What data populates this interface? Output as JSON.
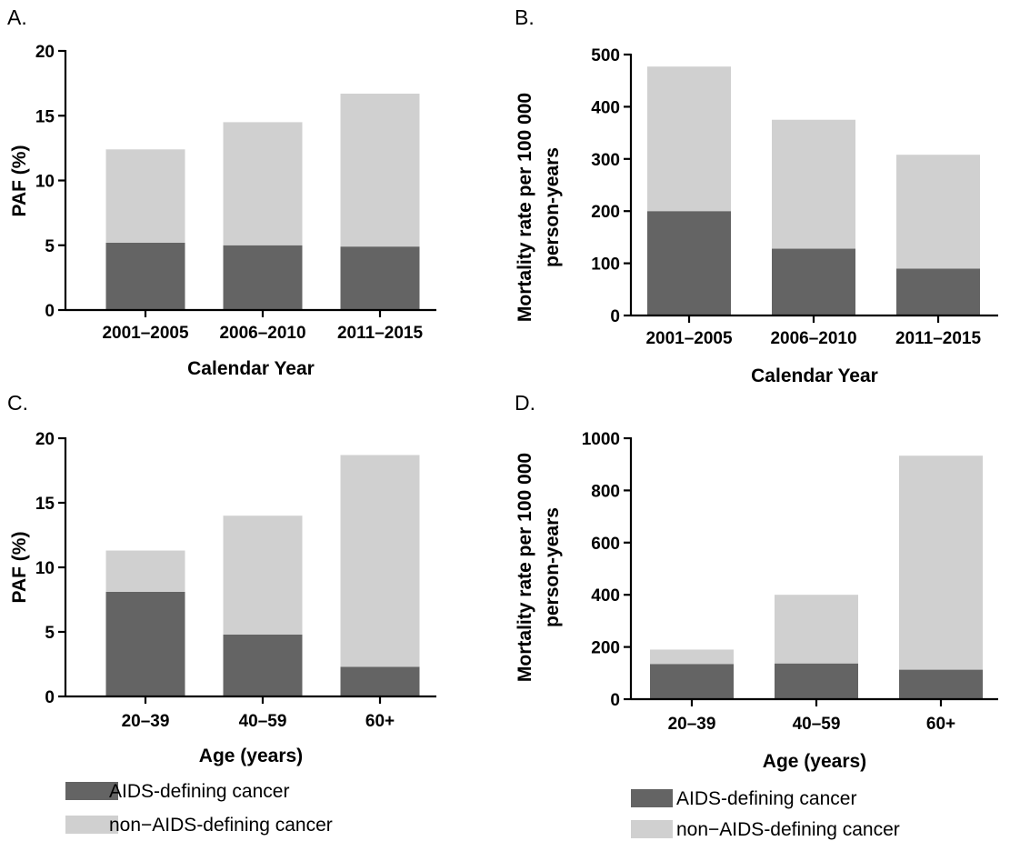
{
  "colors": {
    "aids": "#646464",
    "non_aids": "#d0d0d0"
  },
  "chart_data": [
    {
      "panel": "A.",
      "type": "bar",
      "stacked": true,
      "categories": [
        "2001–2005",
        "2006–2010",
        "2011–2015"
      ],
      "series": [
        {
          "key": "aids",
          "values": [
            5.2,
            5.0,
            4.9
          ]
        },
        {
          "key": "non_aids",
          "values": [
            7.2,
            9.5,
            11.8
          ]
        }
      ],
      "xlabel": "Calendar Year",
      "ylabel": [
        "PAF (%)"
      ],
      "ylim": [
        0,
        20
      ],
      "yticks": [
        0,
        5,
        10,
        15,
        20
      ]
    },
    {
      "panel": "B.",
      "type": "bar",
      "stacked": true,
      "categories": [
        "2001–2005",
        "2006–2010",
        "2011–2015"
      ],
      "series": [
        {
          "key": "aids",
          "values": [
            200,
            128,
            90
          ]
        },
        {
          "key": "non_aids",
          "values": [
            277,
            247,
            218
          ]
        }
      ],
      "xlabel": "Calendar Year",
      "ylabel": [
        "Mortality rate per 100 000",
        "person-years"
      ],
      "ylim": [
        0,
        500
      ],
      "yticks": [
        0,
        100,
        200,
        300,
        400,
        500
      ]
    },
    {
      "panel": "C.",
      "type": "bar",
      "stacked": true,
      "categories": [
        "20–39",
        "40–59",
        "60+"
      ],
      "series": [
        {
          "key": "aids",
          "values": [
            8.1,
            4.8,
            2.3
          ]
        },
        {
          "key": "non_aids",
          "values": [
            3.2,
            9.2,
            16.4
          ]
        }
      ],
      "xlabel": "Age (years)",
      "ylabel": [
        "PAF (%)"
      ],
      "ylim": [
        0,
        20
      ],
      "yticks": [
        0,
        5,
        10,
        15,
        20
      ]
    },
    {
      "panel": "D.",
      "type": "bar",
      "stacked": true,
      "categories": [
        "20–39",
        "40–59",
        "60+"
      ],
      "series": [
        {
          "key": "aids",
          "values": [
            135,
            137,
            113
          ]
        },
        {
          "key": "non_aids",
          "values": [
            55,
            263,
            820
          ]
        }
      ],
      "xlabel": "Age (years)",
      "ylabel": [
        "Mortality rate per 100 000",
        "person-years"
      ],
      "ylim": [
        0,
        1000
      ],
      "yticks": [
        0,
        200,
        400,
        600,
        800,
        1000
      ]
    }
  ],
  "legends": [
    {
      "entries": [
        {
          "key": "aids",
          "label": "AIDS-defining cancer"
        },
        {
          "key": "non_aids",
          "label": "non−AIDS-defining cancer"
        }
      ]
    },
    {
      "entries": [
        {
          "key": "aids",
          "label": "AIDS-defining cancer"
        },
        {
          "key": "non_aids",
          "label": "non−AIDS-defining cancer"
        }
      ]
    }
  ]
}
